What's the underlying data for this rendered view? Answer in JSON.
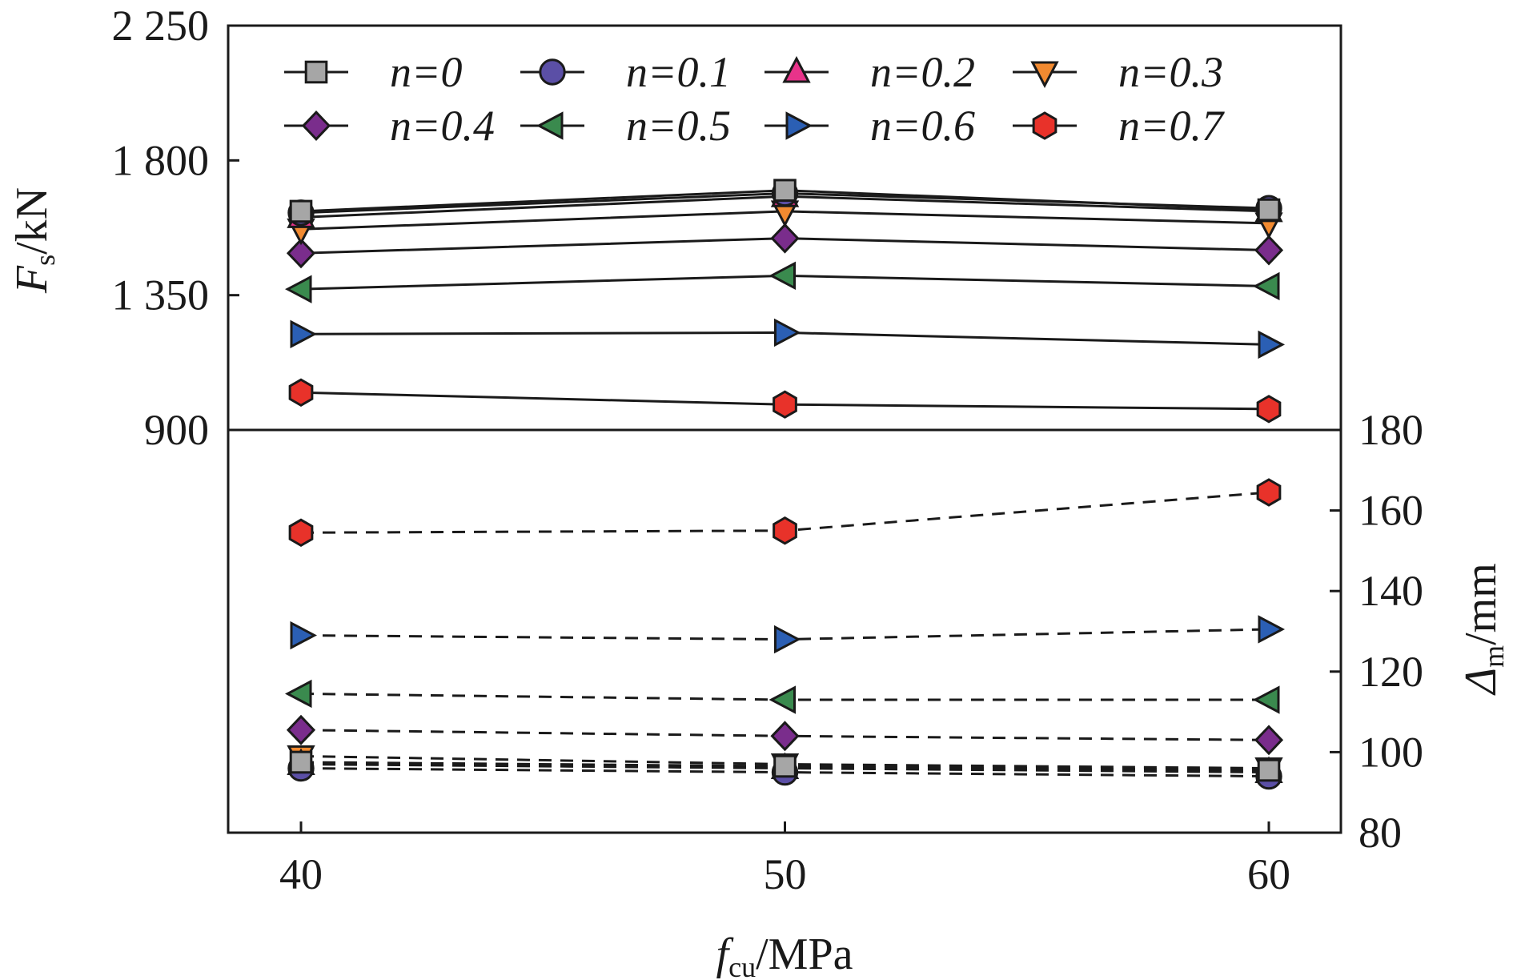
{
  "chart_data": {
    "type": "line",
    "xlabel": {
      "main": "f",
      "sub": "cu",
      "unit": "/MPa"
    },
    "x": [
      40,
      50,
      60
    ],
    "x_ticks": [
      "40",
      "50",
      "60"
    ],
    "top_panel": {
      "ylabel": {
        "main": "F",
        "sub": "s",
        "unit": "/kN"
      },
      "ylim": [
        900,
        2250
      ],
      "y_ticks": [
        "900",
        "1 350",
        "1 800",
        "2 250"
      ],
      "line_style": "solid"
    },
    "bottom_panel": {
      "ylabel": {
        "main": "Δ",
        "sub": "m",
        "unit": "/mm"
      },
      "ylim": [
        80,
        180
      ],
      "y_ticks": [
        "80",
        "100",
        "120",
        "140",
        "160",
        "180"
      ],
      "line_style": "dashed"
    },
    "legend": {
      "placement": "top",
      "columns": 4
    },
    "series": [
      {
        "name": "n=0",
        "label_prefix": "n",
        "label_value": "=0",
        "marker": "square",
        "color": "#a6a6a6",
        "Fs": [
          1630,
          1700,
          1635
        ],
        "Dm": [
          97.5,
          96.5,
          95.5
        ]
      },
      {
        "name": "n=0.1",
        "label_prefix": "n",
        "label_value": "=0.1",
        "marker": "circle",
        "color": "#5b4fa6",
        "Fs": [
          1625,
          1690,
          1640
        ],
        "Dm": [
          96.0,
          95.0,
          94.0
        ]
      },
      {
        "name": "n=0.2",
        "label_prefix": "n",
        "label_value": "=0.2",
        "marker": "triangle-up",
        "color": "#e8338a",
        "Fs": [
          1610,
          1680,
          1630
        ],
        "Dm": [
          97.0,
          96.0,
          95.0
        ]
      },
      {
        "name": "n=0.3",
        "label_prefix": "n",
        "label_value": "=0.3",
        "marker": "triangle-down",
        "color": "#f28a30",
        "Fs": [
          1570,
          1630,
          1590
        ],
        "Dm": [
          99.0,
          97.0,
          96.0
        ]
      },
      {
        "name": "n=0.4",
        "label_prefix": "n",
        "label_value": "=0.4",
        "marker": "diamond",
        "color": "#7a2d8c",
        "Fs": [
          1490,
          1540,
          1500
        ],
        "Dm": [
          105.5,
          104.0,
          103.0
        ]
      },
      {
        "name": "n=0.5",
        "label_prefix": "n",
        "label_value": "=0.5",
        "marker": "triangle-left",
        "color": "#3a8a4e",
        "Fs": [
          1370,
          1415,
          1380
        ],
        "Dm": [
          114.5,
          113.0,
          113.0
        ]
      },
      {
        "name": "n=0.6",
        "label_prefix": "n",
        "label_value": "=0.6",
        "marker": "triangle-right",
        "color": "#2b5fb4",
        "Fs": [
          1220,
          1225,
          1185
        ],
        "Dm": [
          129.0,
          128.0,
          130.5
        ]
      },
      {
        "name": "n=0.7",
        "label_prefix": "n",
        "label_value": "=0.7",
        "marker": "hexagon",
        "color": "#e8322a",
        "Fs": [
          1025,
          985,
          970
        ],
        "Dm": [
          154.5,
          155.0,
          164.5
        ]
      }
    ]
  }
}
